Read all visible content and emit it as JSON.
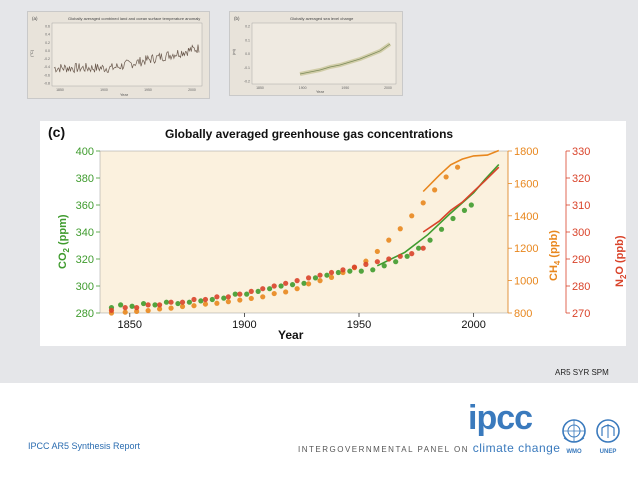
{
  "thumbnails": [
    {
      "panel_label": "(a)",
      "title": "Globally averaged combined land and ocean surface temperature anomaly",
      "ylabel": "(°C)",
      "xlabel": "Year",
      "y_ticks": [
        "0.6",
        "0.4",
        "0.2",
        "0.0",
        "-0.2",
        "-0.4",
        "-0.6",
        "-0.8"
      ],
      "x_ticks": [
        "1850",
        "1900",
        "1950",
        "2000"
      ]
    },
    {
      "panel_label": "(b)",
      "title": "Globally averaged sea level change",
      "ylabel": "(m)",
      "xlabel": "Year",
      "y_ticks": [
        "0.2",
        "0.1",
        "0.0",
        "-0.1",
        "-0.2"
      ],
      "x_ticks": [
        "1850",
        "1900",
        "1950",
        "2000"
      ]
    }
  ],
  "chart_data": {
    "type": "scatter",
    "panel_label": "(c)",
    "title": "Globally averaged greenhouse gas concentrations",
    "xlabel": "Year",
    "xlim": [
      1837,
      2015
    ],
    "x_ticks": [
      1850,
      1900,
      1950,
      2000
    ],
    "axes": [
      {
        "id": "co2",
        "label_main": "CO",
        "label_sub": "2",
        "label_unit": " (ppm)",
        "side": "left",
        "ylim": [
          280,
          400
        ],
        "ticks": [
          280,
          300,
          320,
          340,
          360,
          380,
          400
        ],
        "color": "#3f9b2e"
      },
      {
        "id": "ch4",
        "label_main": "CH",
        "label_sub": "4",
        "label_unit": " (ppb)",
        "side": "right",
        "ylim": [
          800,
          1800
        ],
        "ticks": [
          800,
          1000,
          1200,
          1400,
          1600,
          1800
        ],
        "color": "#e8871e"
      },
      {
        "id": "n2o",
        "label_main": "N",
        "label_sub": "2",
        "label_pre": "O (ppb)",
        "side": "right-outer",
        "ylim": [
          270,
          330
        ],
        "ticks": [
          270,
          280,
          290,
          300,
          310,
          320,
          330
        ],
        "color": "#d9432a"
      }
    ],
    "series": [
      {
        "name": "CO2 ice core",
        "axis": "co2",
        "kind": "points",
        "x": [
          1842,
          1846,
          1851,
          1856,
          1861,
          1866,
          1871,
          1876,
          1881,
          1886,
          1891,
          1896,
          1901,
          1906,
          1911,
          1916,
          1921,
          1926,
          1931,
          1936,
          1941,
          1946,
          1951,
          1956,
          1961,
          1966,
          1971,
          1976,
          1981,
          1986,
          1991,
          1996,
          1999
        ],
        "values": [
          284,
          286,
          285,
          287,
          286,
          288,
          287,
          288,
          289,
          290,
          291,
          294,
          294,
          296,
          298,
          300,
          301,
          302,
          306,
          308,
          310,
          311,
          311,
          312,
          315,
          318,
          322,
          328,
          334,
          342,
          350,
          356,
          360
        ]
      },
      {
        "name": "CO2 atmospheric",
        "axis": "co2",
        "kind": "line",
        "x": [
          1958,
          1970,
          1980,
          1990,
          2000,
          2005,
          2011
        ],
        "values": [
          315,
          325,
          338,
          354,
          369,
          379,
          390
        ]
      },
      {
        "name": "CH4 ice core",
        "axis": "ch4",
        "kind": "points",
        "x": [
          1842,
          1848,
          1853,
          1858,
          1863,
          1868,
          1873,
          1878,
          1883,
          1888,
          1893,
          1898,
          1903,
          1908,
          1913,
          1918,
          1923,
          1928,
          1933,
          1938,
          1943,
          1948,
          1953,
          1958,
          1963,
          1968,
          1973,
          1978,
          1983,
          1988,
          1993
        ],
        "values": [
          800,
          805,
          810,
          815,
          825,
          830,
          840,
          845,
          855,
          860,
          870,
          880,
          890,
          900,
          920,
          930,
          950,
          980,
          1000,
          1020,
          1050,
          1080,
          1120,
          1180,
          1250,
          1320,
          1400,
          1480,
          1560,
          1640,
          1700
        ]
      },
      {
        "name": "CH4 atmospheric",
        "axis": "ch4",
        "kind": "line",
        "x": [
          1978,
          1985,
          1990,
          1995,
          2000,
          2006,
          2011
        ],
        "values": [
          1550,
          1650,
          1715,
          1750,
          1770,
          1775,
          1803
        ]
      },
      {
        "name": "N2O ice core",
        "axis": "n2o",
        "kind": "points",
        "x": [
          1842,
          1848,
          1853,
          1858,
          1863,
          1868,
          1873,
          1878,
          1883,
          1888,
          1893,
          1898,
          1903,
          1908,
          1913,
          1918,
          1923,
          1928,
          1933,
          1938,
          1943,
          1948,
          1953,
          1958,
          1963,
          1968,
          1973,
          1978
        ],
        "values": [
          271,
          272,
          272,
          273,
          273,
          274,
          274,
          275,
          275,
          276,
          276,
          277,
          278,
          279,
          280,
          281,
          282,
          283,
          284,
          285,
          286,
          287,
          288,
          289,
          290,
          291,
          292,
          294
        ]
      },
      {
        "name": "N2O atmospheric",
        "axis": "n2o",
        "kind": "line",
        "x": [
          1978,
          1985,
          1990,
          1995,
          2000,
          2005,
          2011
        ],
        "values": [
          300,
          304,
          308,
          311,
          315,
          319,
          324
        ]
      }
    ]
  },
  "credit": "AR5 SYR SPM",
  "footer": {
    "report_label": "IPCC AR5 Synthesis Report",
    "logo_word": "ipcc",
    "panel_prefix": "INTERGOVERNMENTAL PANEL ON ",
    "panel_emphasis": "climate change",
    "org_labels": [
      "WMO",
      "UNEP"
    ]
  },
  "colors": {
    "co2": "#3f9b2e",
    "ch4": "#e8871e",
    "n2o": "#d9432a",
    "plot_bg": "#fbf1de",
    "ipcc_blue": "#3a7abd"
  }
}
